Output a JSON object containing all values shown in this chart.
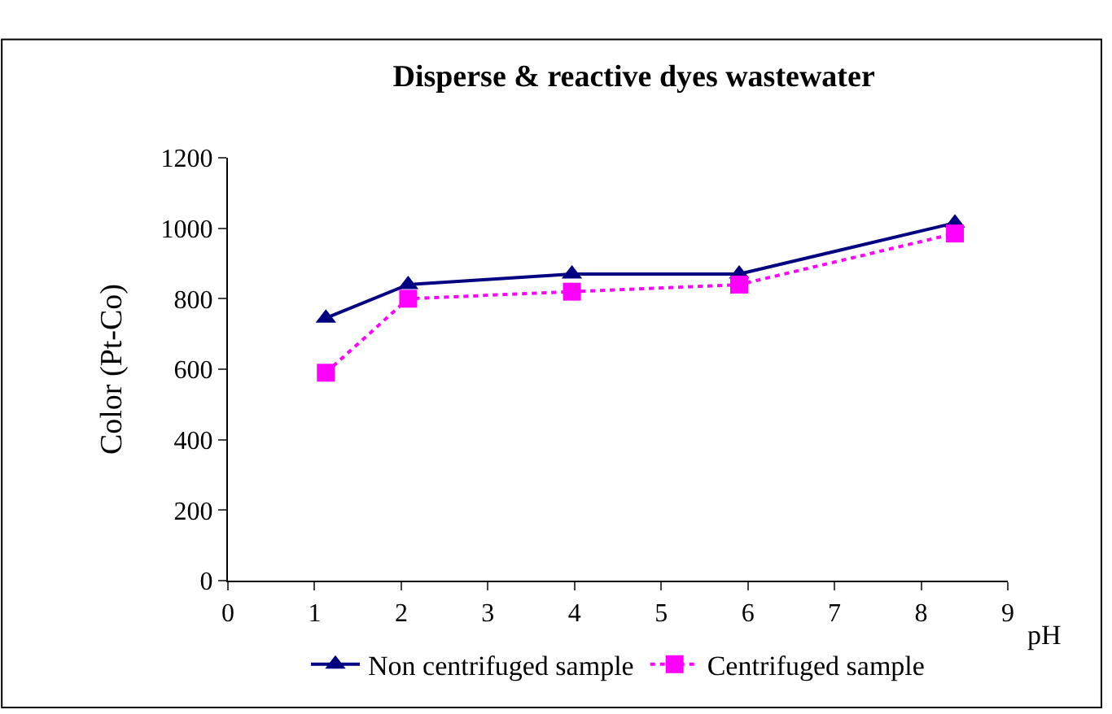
{
  "chart_data": {
    "type": "line",
    "title": "Disperse & reactive dyes wastewater",
    "xlabel": "pH",
    "ylabel": "Color (Pt-Co)",
    "xlim": [
      0,
      9
    ],
    "xticks": [
      0,
      1,
      2,
      3,
      4,
      5,
      6,
      7,
      8,
      9
    ],
    "ylim": [
      0,
      1200
    ],
    "yticks": [
      0,
      200,
      400,
      600,
      800,
      1000,
      1200
    ],
    "legend": "bottom",
    "series": [
      {
        "name": "Non centrifuged sample",
        "color": "#000080",
        "x": [
          1.13,
          2.08,
          3.97,
          5.9,
          8.39
        ],
        "values": [
          745,
          840,
          870,
          870,
          1015
        ],
        "marker": "triangle",
        "line_style": "solid"
      },
      {
        "name": "Centrifuged sample",
        "color": "#ff00ff",
        "x": [
          1.13,
          2.08,
          3.97,
          5.9,
          8.39
        ],
        "values": [
          590,
          800,
          820,
          840,
          985
        ],
        "marker": "square",
        "line_style": "dotted"
      }
    ]
  }
}
